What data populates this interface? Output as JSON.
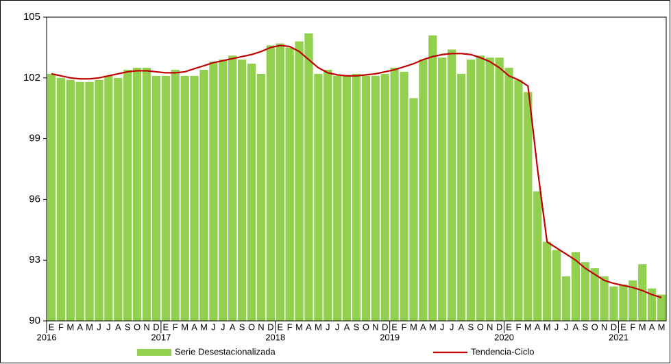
{
  "chart_data": {
    "type": "bar-line",
    "categories": [
      "E",
      "F",
      "M",
      "A",
      "M",
      "J",
      "J",
      "A",
      "S",
      "O",
      "N",
      "D",
      "E",
      "F",
      "M",
      "A",
      "M",
      "J",
      "J",
      "A",
      "S",
      "O",
      "N",
      "D",
      "E",
      "F",
      "M",
      "A",
      "M",
      "J",
      "J",
      "A",
      "S",
      "O",
      "N",
      "D",
      "E",
      "F",
      "M",
      "A",
      "M",
      "J",
      "J",
      "A",
      "S",
      "O",
      "N",
      "D",
      "E",
      "F",
      "M",
      "A",
      "M",
      "J",
      "J",
      "A",
      "S",
      "O",
      "N",
      "D",
      "E",
      "F",
      "M",
      "A",
      "M"
    ],
    "year_labels": [
      "2016",
      "2017",
      "2018",
      "2019",
      "2020",
      "2021"
    ],
    "series": [
      {
        "name": "Serie Desestacionalizada",
        "color": "#92d050",
        "type": "bar",
        "values": [
          102.2,
          102.0,
          101.9,
          101.8,
          101.8,
          101.9,
          102.1,
          102.0,
          102.4,
          102.5,
          102.5,
          102.1,
          102.1,
          102.4,
          102.1,
          102.1,
          102.4,
          102.8,
          102.9,
          103.1,
          102.9,
          102.7,
          102.2,
          103.6,
          103.7,
          103.5,
          103.8,
          104.2,
          102.2,
          102.4,
          102.1,
          102.1,
          102.2,
          102.1,
          102.1,
          102.2,
          102.5,
          102.3,
          101.0,
          102.9,
          104.1,
          103.0,
          103.4,
          102.2,
          102.9,
          103.1,
          103.0,
          103.0,
          102.5,
          101.9,
          101.3,
          96.4,
          93.9,
          93.5,
          92.2,
          93.4,
          92.9,
          92.6,
          92.2,
          91.7,
          91.8,
          92.0,
          92.8,
          91.6,
          91.3
        ]
      },
      {
        "name": "Tendencia-Ciclo",
        "color": "#c00000",
        "type": "line",
        "values": [
          102.2,
          102.1,
          102.0,
          101.95,
          101.95,
          102.0,
          102.1,
          102.2,
          102.3,
          102.35,
          102.35,
          102.3,
          102.25,
          102.25,
          102.3,
          102.45,
          102.6,
          102.75,
          102.85,
          102.95,
          103.05,
          103.15,
          103.3,
          103.5,
          103.6,
          103.55,
          103.3,
          102.9,
          102.5,
          102.25,
          102.15,
          102.1,
          102.1,
          102.15,
          102.2,
          102.3,
          102.4,
          102.55,
          102.7,
          102.9,
          103.05,
          103.15,
          103.2,
          103.2,
          103.15,
          103.0,
          102.8,
          102.5,
          102.1,
          101.9,
          101.6,
          97.5,
          93.9,
          93.6,
          93.3,
          93.0,
          92.6,
          92.3,
          92.0,
          91.85,
          91.75,
          91.65,
          91.5,
          91.3,
          91.15
        ]
      }
    ],
    "ylim": [
      90,
      105
    ],
    "yticks": [
      90,
      93,
      96,
      99,
      102,
      105
    ],
    "grid": false,
    "legend": "bottom"
  }
}
